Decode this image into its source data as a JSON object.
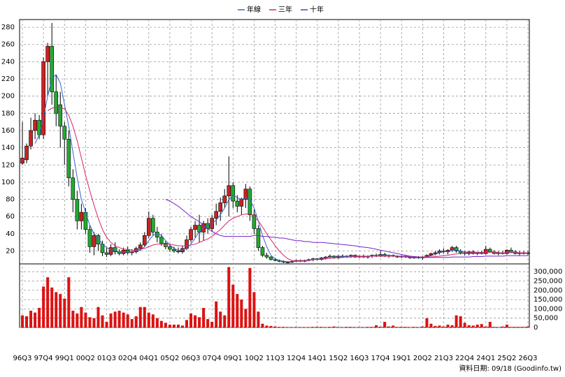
{
  "chart_data": {
    "type": "candlestick",
    "legend_position": "top",
    "footer": "資料日期: 09/18 (Goodinfo.tw)",
    "up_color": "#cc2222",
    "down_color": "#22aa33",
    "volume_color": "#dd1111",
    "grid": true,
    "categories": [
      "96Q3",
      null,
      null,
      null,
      null,
      "97Q4",
      null,
      null,
      null,
      null,
      "99Q1",
      null,
      null,
      null,
      null,
      "00Q2",
      null,
      null,
      null,
      null,
      "01Q3",
      null,
      null,
      null,
      null,
      "02Q4",
      null,
      null,
      null,
      null,
      "04Q1",
      null,
      null,
      null,
      null,
      "05Q2",
      null,
      null,
      null,
      null,
      "06Q3",
      null,
      null,
      null,
      null,
      "07Q4",
      null,
      null,
      null,
      null,
      "09Q1",
      null,
      null,
      null,
      null,
      "10Q2",
      null,
      null,
      null,
      null,
      "11Q3",
      null,
      null,
      null,
      null,
      "12Q4",
      null,
      null,
      null,
      null,
      "14Q1",
      null,
      null,
      null,
      null,
      "15Q2",
      null,
      null,
      null,
      null,
      "16Q3",
      null,
      null,
      null,
      null,
      "17Q4",
      null,
      null,
      null,
      null,
      "19Q1",
      null,
      null,
      null,
      null,
      "20Q2",
      null,
      null,
      null,
      null,
      "21Q3",
      null,
      null,
      null,
      null,
      "22Q4",
      null,
      null,
      null,
      null,
      "24Q1",
      null,
      null,
      null,
      null,
      "25Q2",
      null,
      null,
      null,
      null,
      "26Q3"
    ],
    "ohlc": [
      [
        122,
        170,
        120,
        128
      ],
      [
        126,
        145,
        122,
        142
      ],
      [
        142,
        175,
        138,
        160
      ],
      [
        160,
        180,
        150,
        172
      ],
      [
        172,
        178,
        150,
        155
      ],
      [
        155,
        245,
        150,
        240
      ],
      [
        240,
        262,
        200,
        258
      ],
      [
        258,
        285,
        190,
        205
      ],
      [
        205,
        225,
        165,
        180
      ],
      [
        190,
        205,
        140,
        165
      ],
      [
        165,
        170,
        120,
        150
      ],
      [
        150,
        160,
        95,
        105
      ],
      [
        105,
        115,
        65,
        80
      ],
      [
        80,
        90,
        45,
        55
      ],
      [
        55,
        75,
        45,
        65
      ],
      [
        65,
        70,
        40,
        45
      ],
      [
        45,
        50,
        18,
        25
      ],
      [
        25,
        42,
        15,
        38
      ],
      [
        38,
        40,
        20,
        28
      ],
      [
        28,
        32,
        14,
        18
      ],
      [
        18,
        24,
        13,
        16
      ],
      [
        16,
        28,
        14,
        24
      ],
      [
        24,
        30,
        16,
        19
      ],
      [
        19,
        22,
        15,
        17
      ],
      [
        17,
        24,
        15,
        21
      ],
      [
        21,
        25,
        16,
        18
      ],
      [
        18,
        22,
        15,
        19
      ],
      [
        19,
        25,
        17,
        23
      ],
      [
        23,
        30,
        20,
        27
      ],
      [
        27,
        42,
        25,
        38
      ],
      [
        38,
        66,
        35,
        58
      ],
      [
        58,
        62,
        38,
        42
      ],
      [
        42,
        48,
        30,
        36
      ],
      [
        36,
        40,
        26,
        29
      ],
      [
        29,
        32,
        22,
        25
      ],
      [
        25,
        28,
        19,
        22
      ],
      [
        22,
        25,
        18,
        20
      ],
      [
        20,
        24,
        17,
        19
      ],
      [
        19,
        26,
        17,
        23
      ],
      [
        23,
        38,
        21,
        33
      ],
      [
        33,
        48,
        30,
        45
      ],
      [
        45,
        55,
        36,
        50
      ],
      [
        50,
        62,
        30,
        42
      ],
      [
        42,
        55,
        32,
        52
      ],
      [
        52,
        58,
        40,
        46
      ],
      [
        46,
        62,
        42,
        58
      ],
      [
        58,
        75,
        50,
        66
      ],
      [
        66,
        82,
        55,
        76
      ],
      [
        76,
        92,
        70,
        84
      ],
      [
        84,
        130,
        60,
        96
      ],
      [
        96,
        100,
        70,
        78
      ],
      [
        78,
        85,
        65,
        72
      ],
      [
        72,
        82,
        62,
        80
      ],
      [
        80,
        98,
        70,
        92
      ],
      [
        92,
        95,
        55,
        62
      ],
      [
        62,
        68,
        40,
        46
      ],
      [
        46,
        50,
        20,
        24
      ],
      [
        24,
        26,
        13,
        15
      ],
      [
        15,
        18,
        11,
        13
      ],
      [
        13,
        14,
        9,
        10
      ],
      [
        10,
        12,
        8,
        9
      ],
      [
        9,
        10,
        7,
        8
      ],
      [
        8,
        9,
        6,
        7
      ],
      [
        7,
        8,
        6,
        7
      ],
      [
        7,
        9,
        6,
        8
      ],
      [
        8,
        10,
        7,
        9
      ],
      [
        9,
        10,
        7,
        8
      ],
      [
        8,
        10,
        7,
        9
      ],
      [
        9,
        11,
        8,
        10
      ],
      [
        10,
        12,
        8,
        11
      ],
      [
        11,
        12,
        9,
        10
      ],
      [
        10,
        13,
        9,
        12
      ],
      [
        12,
        14,
        10,
        13
      ],
      [
        13,
        16,
        11,
        14
      ],
      [
        14,
        15,
        11,
        12
      ],
      [
        12,
        15,
        11,
        14
      ],
      [
        14,
        16,
        12,
        13
      ],
      [
        13,
        15,
        12,
        14
      ],
      [
        14,
        16,
        12,
        15
      ],
      [
        15,
        16,
        12,
        13
      ],
      [
        13,
        15,
        12,
        14
      ],
      [
        14,
        16,
        12,
        13
      ],
      [
        13,
        15,
        11,
        14
      ],
      [
        14,
        16,
        12,
        15
      ],
      [
        15,
        17,
        13,
        14
      ],
      [
        14,
        20,
        13,
        16
      ],
      [
        16,
        18,
        13,
        14
      ],
      [
        14,
        16,
        12,
        15
      ],
      [
        15,
        16,
        13,
        14
      ],
      [
        14,
        15,
        12,
        13
      ],
      [
        13,
        15,
        12,
        14
      ],
      [
        14,
        15,
        12,
        13
      ],
      [
        13,
        14,
        11,
        12
      ],
      [
        12,
        14,
        11,
        13
      ],
      [
        13,
        14,
        11,
        12
      ],
      [
        12,
        14,
        10,
        13
      ],
      [
        13,
        16,
        12,
        15
      ],
      [
        15,
        18,
        14,
        17
      ],
      [
        17,
        20,
        15,
        18
      ],
      [
        18,
        22,
        16,
        20
      ],
      [
        20,
        23,
        17,
        19
      ],
      [
        19,
        22,
        16,
        21
      ],
      [
        21,
        26,
        19,
        24
      ],
      [
        24,
        26,
        18,
        20
      ],
      [
        20,
        22,
        16,
        18
      ],
      [
        18,
        20,
        15,
        17
      ],
      [
        17,
        20,
        15,
        19
      ],
      [
        19,
        21,
        16,
        17
      ],
      [
        17,
        19,
        15,
        18
      ],
      [
        18,
        20,
        16,
        17
      ],
      [
        17,
        26,
        16,
        22
      ],
      [
        22,
        24,
        18,
        19
      ],
      [
        19,
        21,
        16,
        17
      ],
      [
        17,
        20,
        15,
        18
      ],
      [
        18,
        20,
        16,
        17
      ],
      [
        17,
        22,
        16,
        21
      ],
      [
        21,
        24,
        18,
        19
      ],
      [
        19,
        21,
        16,
        17
      ],
      [
        17,
        20,
        15,
        18
      ],
      [
        18,
        20,
        16,
        17
      ],
      [
        17,
        20,
        15,
        18
      ]
    ],
    "volume": [
      65000,
      60000,
      90000,
      80000,
      105000,
      220000,
      270000,
      215000,
      190000,
      180000,
      155000,
      270000,
      90000,
      75000,
      110000,
      80000,
      55000,
      50000,
      110000,
      65000,
      30000,
      75000,
      85000,
      90000,
      80000,
      70000,
      45000,
      60000,
      110000,
      110000,
      80000,
      70000,
      50000,
      35000,
      25000,
      15000,
      15000,
      15000,
      10000,
      40000,
      75000,
      65000,
      55000,
      105000,
      45000,
      30000,
      140000,
      85000,
      65000,
      325000,
      230000,
      180000,
      150000,
      100000,
      320000,
      190000,
      85000,
      20000,
      10000,
      8000,
      5000,
      3000,
      3000,
      2000,
      2000,
      2000,
      2000,
      2000,
      2000,
      3000,
      3000,
      3000,
      2000,
      3000,
      5000,
      2000,
      2000,
      3000,
      3000,
      2000,
      2000,
      2000,
      3000,
      3000,
      12000,
      4000,
      30000,
      5000,
      10000,
      3000,
      3000,
      3000,
      2000,
      3000,
      2000,
      5000,
      50000,
      20000,
      8000,
      10000,
      5000,
      15000,
      12000,
      65000,
      60000,
      25000,
      12000,
      10000,
      15000,
      18000,
      5000,
      30000,
      3000,
      2000,
      5000,
      15000,
      3000,
      3000,
      3000,
      3000,
      5000
    ],
    "series": [
      {
        "name": "年線",
        "color": "#3366cc",
        "values": [
          null,
          null,
          null,
          145,
          155,
          175,
          200,
          220,
          225,
          215,
          190,
          165,
          135,
          105,
          80,
          65,
          50,
          40,
          35,
          28,
          24,
          21,
          20,
          19,
          19,
          19,
          19,
          20,
          21,
          25,
          32,
          38,
          40,
          38,
          32,
          27,
          23,
          21,
          21,
          23,
          28,
          35,
          43,
          47,
          50,
          52,
          56,
          62,
          70,
          80,
          85,
          82,
          80,
          82,
          80,
          70,
          55,
          38,
          25,
          15,
          11,
          9,
          8,
          7.5,
          7.5,
          8,
          8,
          8.5,
          9,
          10,
          10.5,
          11,
          12,
          13,
          13,
          13,
          13.5,
          13.5,
          14,
          14,
          14,
          14,
          13.5,
          14,
          14.5,
          15,
          15,
          15,
          14.5,
          14,
          13.5,
          13.5,
          13,
          12.5,
          12.5,
          12.5,
          13,
          14.5,
          16,
          18,
          19,
          19.5,
          21,
          21,
          20,
          19,
          18,
          18,
          17.5,
          17.5,
          19,
          19.5,
          19,
          18,
          17.5,
          18.5,
          19,
          18.5,
          18,
          17.5,
          17.5
        ]
      },
      {
        "name": "三年",
        "color": "#dd2266",
        "values": [
          null,
          null,
          null,
          null,
          null,
          null,
          183,
          186,
          187,
          187,
          185,
          178,
          165,
          148,
          128,
          108,
          90,
          73,
          58,
          45,
          36,
          30,
          26,
          24,
          22,
          22,
          21,
          21,
          22,
          23,
          25,
          27,
          28,
          28,
          28,
          28,
          27,
          26,
          26,
          26,
          27,
          28,
          30,
          32,
          34,
          37,
          41,
          45,
          50,
          55,
          58,
          60,
          62,
          63,
          63,
          60,
          55,
          48,
          40,
          33,
          26,
          20,
          15,
          11,
          9,
          9,
          9,
          9,
          9.5,
          10,
          10,
          10.5,
          11,
          11.5,
          12,
          12.5,
          12.5,
          13,
          13,
          13.5,
          13.5,
          13.5,
          14,
          14,
          14,
          14,
          14,
          14,
          14,
          14,
          14,
          14,
          13.5,
          13.5,
          13,
          13,
          13,
          13,
          13.5,
          14,
          14.5,
          15,
          16,
          16.5,
          17,
          17.5,
          18,
          18.5,
          18.5,
          18.5,
          18.5,
          18.5,
          18.5,
          18,
          18,
          18,
          18,
          18,
          18,
          18,
          18
        ]
      },
      {
        "name": "十年",
        "color": "#7722cc",
        "values": [
          null,
          null,
          null,
          null,
          null,
          null,
          null,
          null,
          null,
          null,
          null,
          null,
          null,
          null,
          null,
          null,
          null,
          null,
          null,
          null,
          null,
          null,
          null,
          null,
          null,
          null,
          null,
          null,
          null,
          null,
          null,
          null,
          null,
          null,
          80,
          78,
          75,
          72,
          68,
          64,
          60,
          57,
          54,
          50,
          46,
          43,
          40,
          38,
          37,
          37,
          37,
          37,
          37,
          37,
          37,
          38,
          38,
          37,
          37,
          36,
          36,
          35,
          35,
          34,
          33,
          32,
          32,
          31,
          31,
          30,
          30,
          30,
          29.5,
          29,
          28.5,
          28,
          27.5,
          27,
          26.5,
          26,
          25,
          24.5,
          24,
          23,
          22,
          21,
          20,
          19,
          18,
          17,
          16,
          15,
          14,
          13.5,
          13,
          12.5,
          12.5,
          12.5,
          12.5,
          12.5,
          12.5,
          12.5,
          13,
          13,
          13,
          13,
          13,
          13.5,
          13.5,
          13.5,
          14,
          14,
          14,
          14,
          14,
          14.5,
          14.5,
          14.5,
          14.5,
          14.5,
          14.5
        ]
      }
    ],
    "ylim": [
      5,
      289
    ],
    "yticks": [
      20,
      40,
      60,
      80,
      100,
      120,
      140,
      160,
      180,
      200,
      220,
      240,
      260,
      280
    ],
    "y2lim": [
      0,
      342000
    ],
    "y2ticks": [
      0,
      {
        "value": 50000,
        "label": "50,000"
      },
      {
        "value": 100000,
        "label": "100,000"
      },
      {
        "value": 150000,
        "label": "150,000"
      },
      {
        "value": 200000,
        "label": "200,000"
      },
      {
        "value": 250000,
        "label": "250,000"
      },
      {
        "value": 300000,
        "label": "300,000"
      }
    ]
  }
}
